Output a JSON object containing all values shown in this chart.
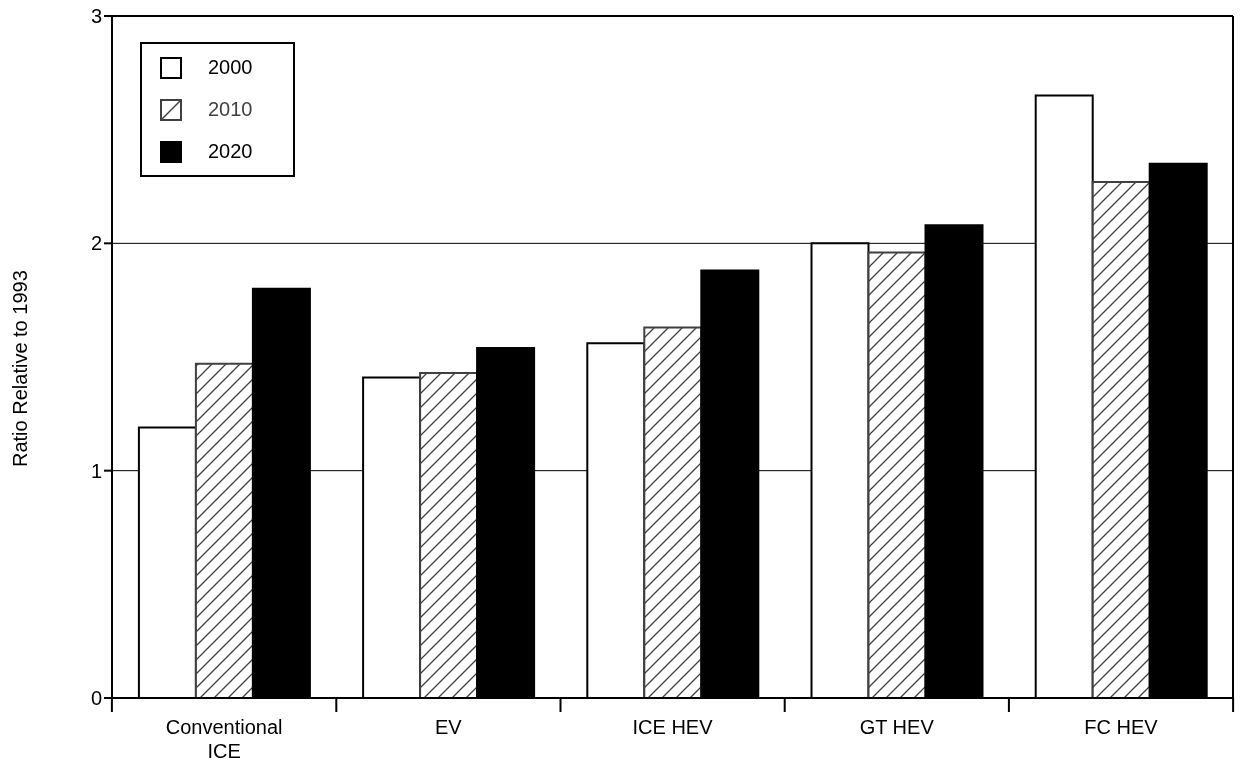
{
  "chart_data": {
    "type": "bar",
    "ylabel": "Ratio Relative to 1993",
    "categories": [
      "Conventional ICE",
      "EV",
      "ICE HEV",
      "GT HEV",
      "FC HEV"
    ],
    "series": [
      {
        "name": "2000",
        "color": "#ffffff",
        "values": [
          1.19,
          1.41,
          1.56,
          2.0,
          2.65
        ]
      },
      {
        "name": "2010",
        "color": "#404040",
        "values": [
          1.47,
          1.43,
          1.63,
          1.96,
          2.27
        ]
      },
      {
        "name": "2020",
        "color": "#000000",
        "values": [
          1.8,
          1.54,
          1.88,
          2.08,
          2.35
        ]
      }
    ],
    "ylim": [
      0,
      3
    ],
    "yticks": [
      0,
      1,
      2,
      3
    ],
    "grid": "y",
    "legend": "top left"
  }
}
